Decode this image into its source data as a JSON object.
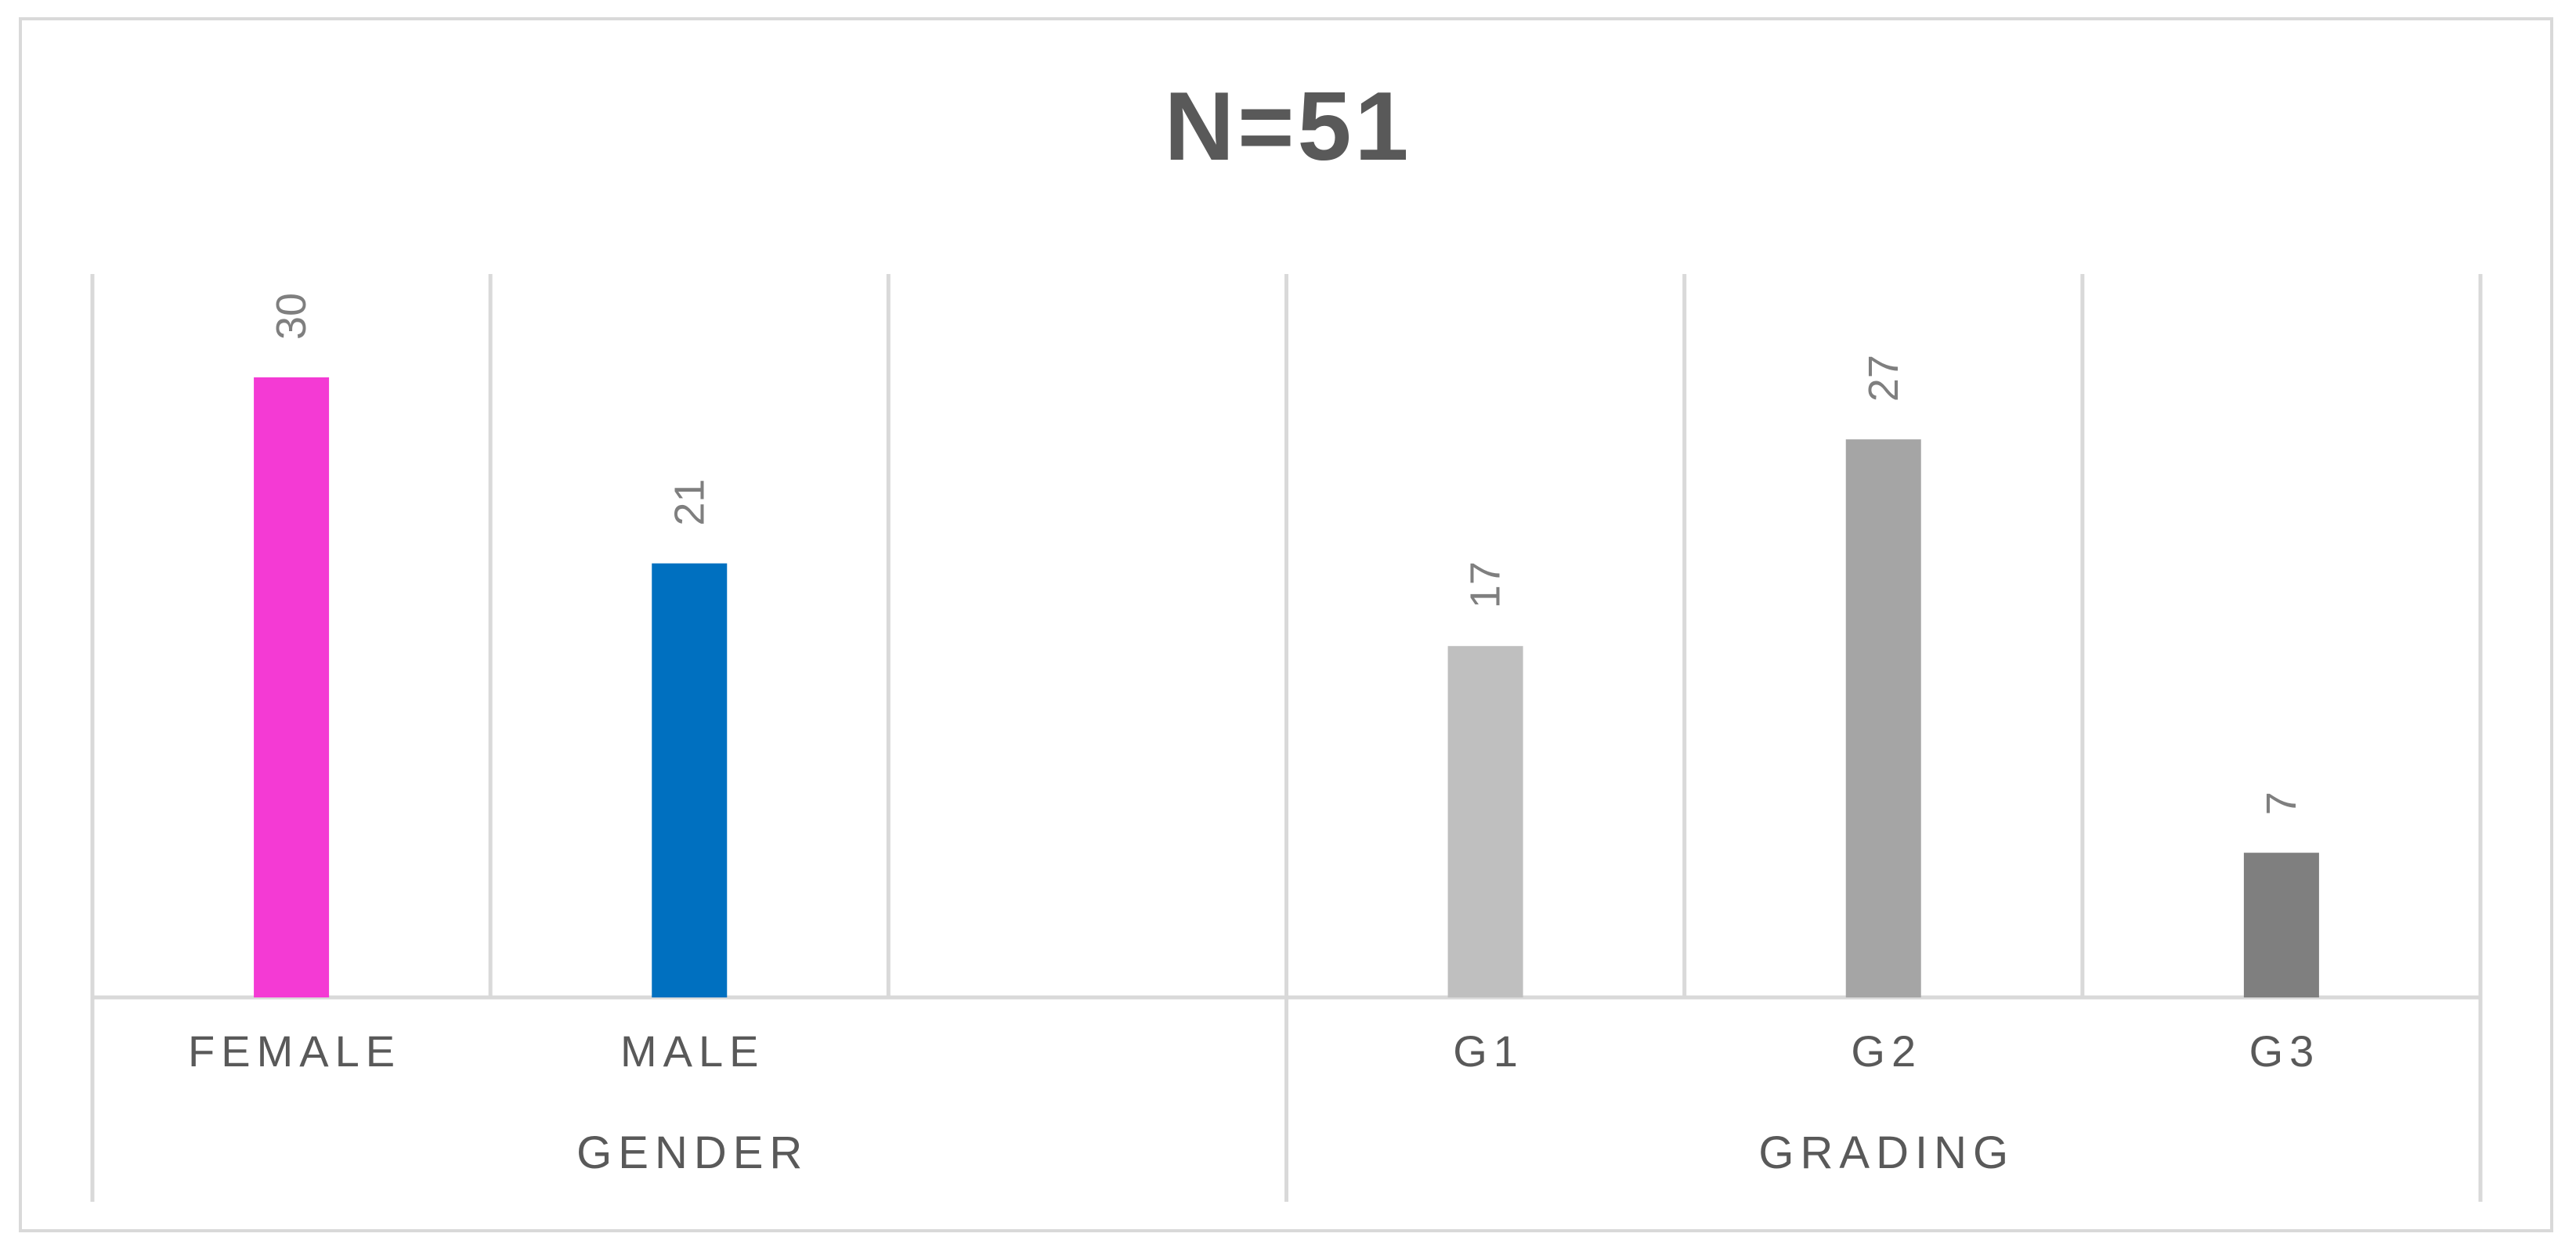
{
  "chart_data": {
    "type": "bar",
    "title": "N=51",
    "xlabel": "",
    "ylabel": "",
    "ylim": [
      0,
      35
    ],
    "grid": false,
    "legend": "none",
    "groups": [
      {
        "name": "GENDER",
        "categories": [
          "FEMALE",
          "MALE",
          ""
        ],
        "values": [
          30,
          21,
          null
        ],
        "colors": [
          "#f43ad4",
          "#0070c0",
          null
        ]
      },
      {
        "name": "GRADING",
        "categories": [
          "G1",
          "G2",
          "G3"
        ],
        "values": [
          17,
          27,
          7
        ],
        "colors": [
          "#bfbfbf",
          "#a5a5a5",
          "#7f7f7f"
        ]
      }
    ],
    "data_labels": true,
    "data_label_orientation": "vertical"
  }
}
